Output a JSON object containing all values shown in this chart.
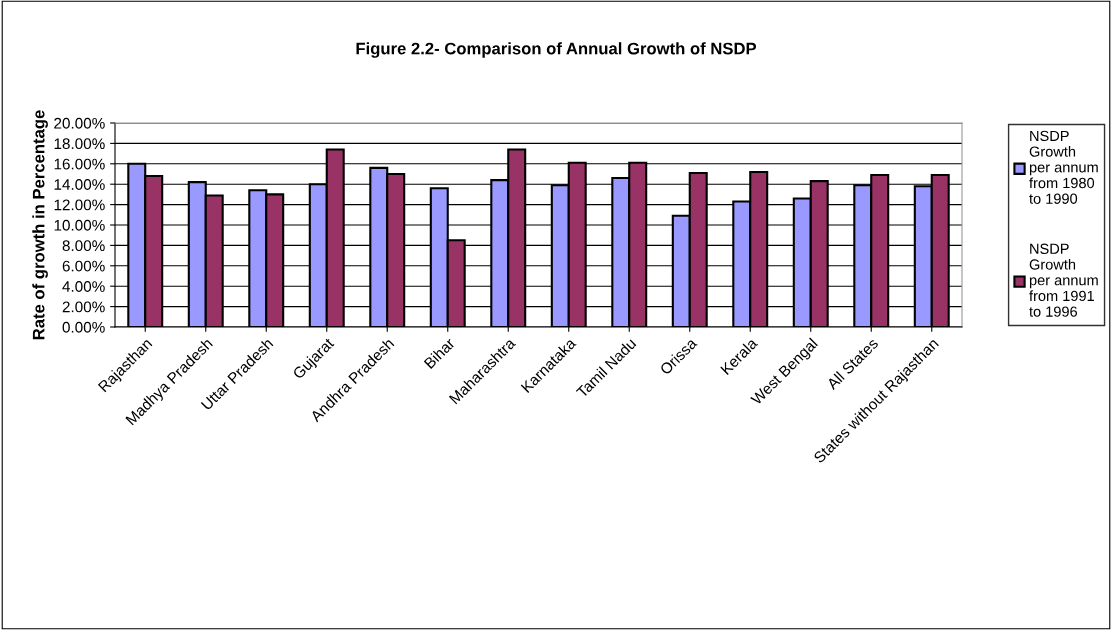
{
  "chart_data": {
    "type": "bar",
    "title": "Figure 2.2- Comparison of Annual Growth of NSDP",
    "ylabel": "Rate of growth in Percentage",
    "categories": [
      "Rajasthan",
      "Madhya Pradesh",
      "Uttar Pradesh",
      "Gujarat",
      "Andhra Pradesh",
      "Bihar",
      "Maharashtra",
      "Karnataka",
      "Tamil Nadu",
      "Orissa",
      "Kerala",
      "West Bengal",
      "All States",
      "States without Rajasthan"
    ],
    "series": [
      {
        "name": "NSDP Growth per annum from 1980 to 1990",
        "color": "#9999ff",
        "values": [
          16.0,
          14.2,
          13.4,
          14.0,
          15.6,
          13.6,
          14.4,
          13.9,
          14.6,
          10.9,
          12.3,
          12.6,
          13.9,
          13.8
        ]
      },
      {
        "name": "NSDP Growth per annum from 1991 to 1996",
        "color": "#993366",
        "values": [
          14.8,
          12.9,
          13.0,
          17.4,
          15.0,
          8.5,
          17.4,
          16.1,
          16.1,
          15.1,
          15.2,
          14.3,
          14.9,
          14.9
        ]
      }
    ],
    "ylim": [
      0,
      20
    ],
    "yticks": [
      {
        "value": 0,
        "label": "0.00%"
      },
      {
        "value": 2,
        "label": "2.00%"
      },
      {
        "value": 4,
        "label": "4.00%"
      },
      {
        "value": 6,
        "label": "6.00%"
      },
      {
        "value": 8,
        "label": "8.00%"
      },
      {
        "value": 10,
        "label": "10.00%"
      },
      {
        "value": 12,
        "label": "12.00%"
      },
      {
        "value": 14,
        "label": "14.00%"
      },
      {
        "value": 16,
        "label": "16.00%"
      },
      {
        "value": 18,
        "label": "18.00%"
      },
      {
        "value": 20,
        "label": "20.00%"
      }
    ],
    "grid": "y",
    "legend": "right"
  }
}
